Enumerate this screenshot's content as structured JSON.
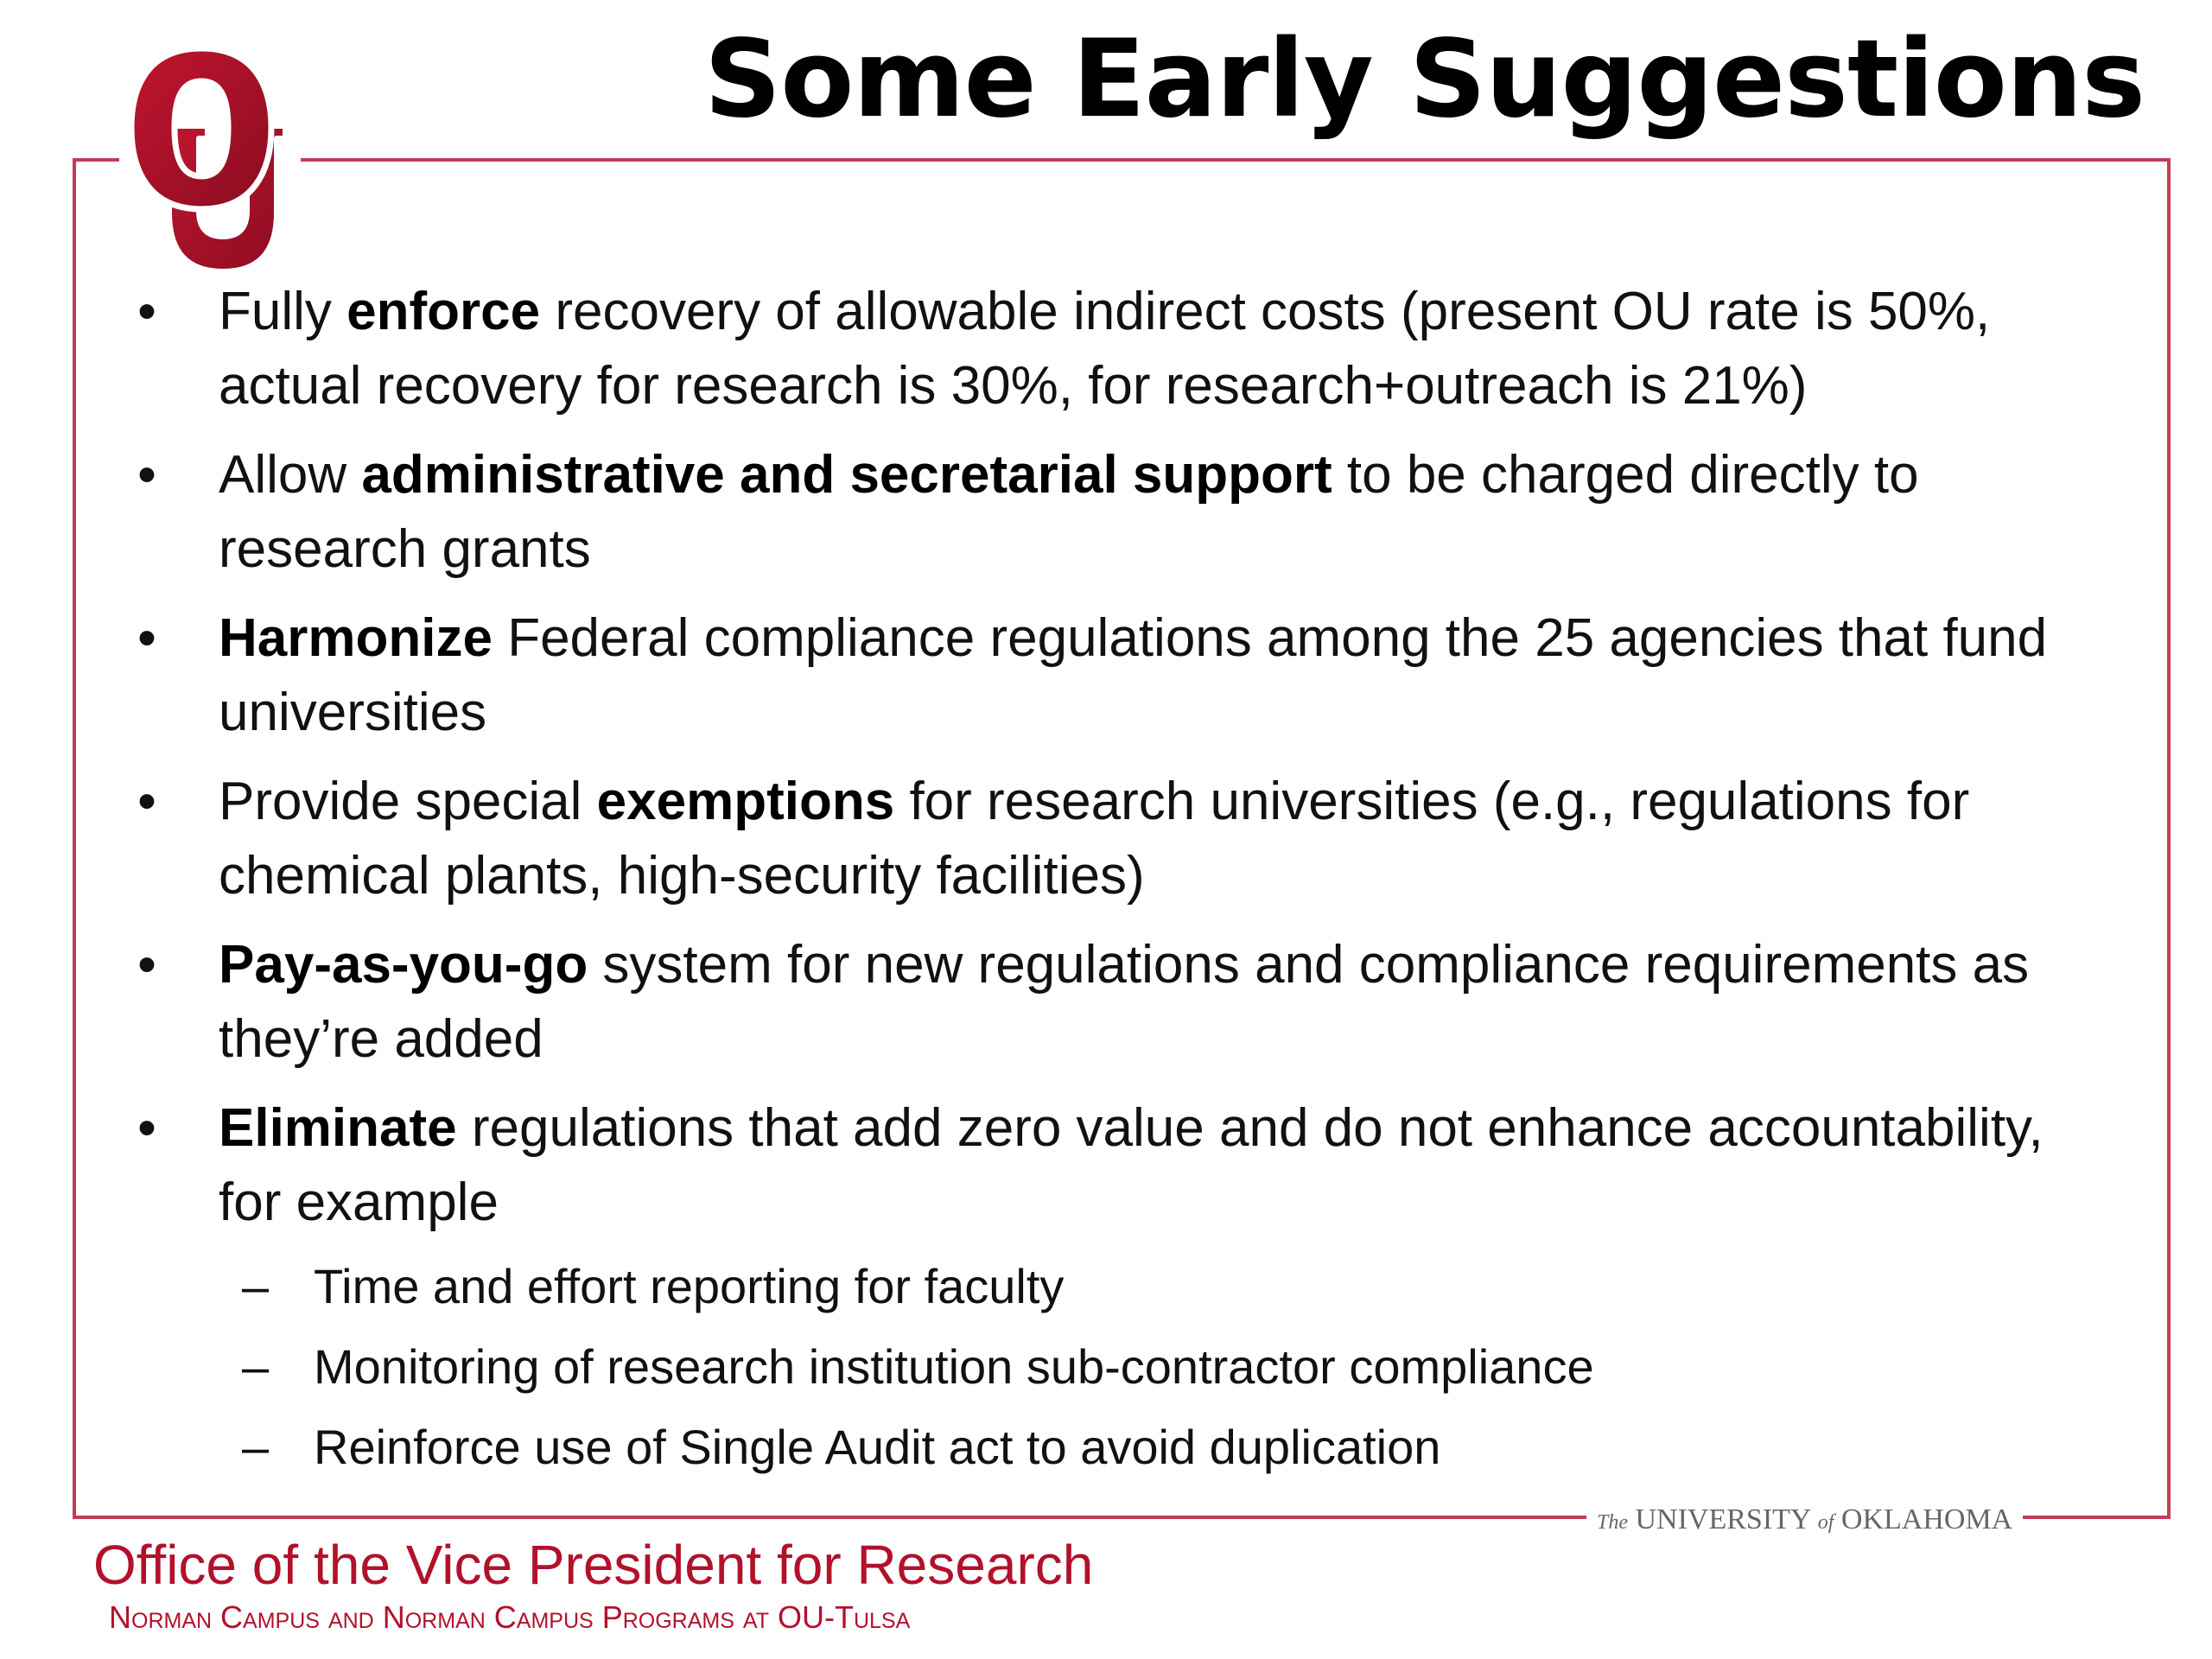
{
  "slide": {
    "title": "Some Early Suggestions"
  },
  "logo": {
    "icon": "ou-interlocking-logo-icon",
    "color": "#a0102a"
  },
  "bullets": [
    {
      "segments": [
        {
          "text": "Fully ",
          "bold": false
        },
        {
          "text": "enforce",
          "bold": true
        },
        {
          "text": " recovery of allowable indirect costs (present OU rate is 50%, actual recovery for research is 30%, for research+outreach is 21%)",
          "bold": false
        }
      ]
    },
    {
      "segments": [
        {
          "text": "Allow ",
          "bold": false
        },
        {
          "text": "administrative and secretarial support",
          "bold": true
        },
        {
          "text": " to be charged directly to research grants",
          "bold": false
        }
      ]
    },
    {
      "segments": [
        {
          "text": "Harmonize",
          "bold": true
        },
        {
          "text": " Federal compliance regulations among the 25 agencies that fund universities",
          "bold": false
        }
      ]
    },
    {
      "segments": [
        {
          "text": "Provide special ",
          "bold": false
        },
        {
          "text": "exemptions",
          "bold": true
        },
        {
          "text": " for research universities (e.g., regulations for chemical plants, high-security facilities)",
          "bold": false
        }
      ]
    },
    {
      "segments": [
        {
          "text": "Pay-as-you-go",
          "bold": true
        },
        {
          "text": " system for new regulations and compliance requirements as they’re added",
          "bold": false
        }
      ]
    },
    {
      "segments": [
        {
          "text": "Eliminate",
          "bold": true
        },
        {
          "text": " regulations that add zero value and do not enhance accountability, for example",
          "bold": false
        }
      ],
      "sub_items": [
        "Time and effort reporting for faculty",
        "Monitoring of research institution sub-contractor compliance",
        "Reinforce use of Single Audit act to avoid duplication"
      ]
    }
  ],
  "markers": {
    "bullet": "•",
    "dash": "–"
  },
  "footer": {
    "university_the": "The",
    "university_main": "UNIVERSITY",
    "university_of": "of",
    "university_state": "OKLAHOMA",
    "office": "Office of the Vice President for Research",
    "campus": "Norman Campus and Norman Campus Programs at OU-Tulsa"
  },
  "colors": {
    "accent": "#b2112b",
    "frame": "#c43d5a"
  }
}
